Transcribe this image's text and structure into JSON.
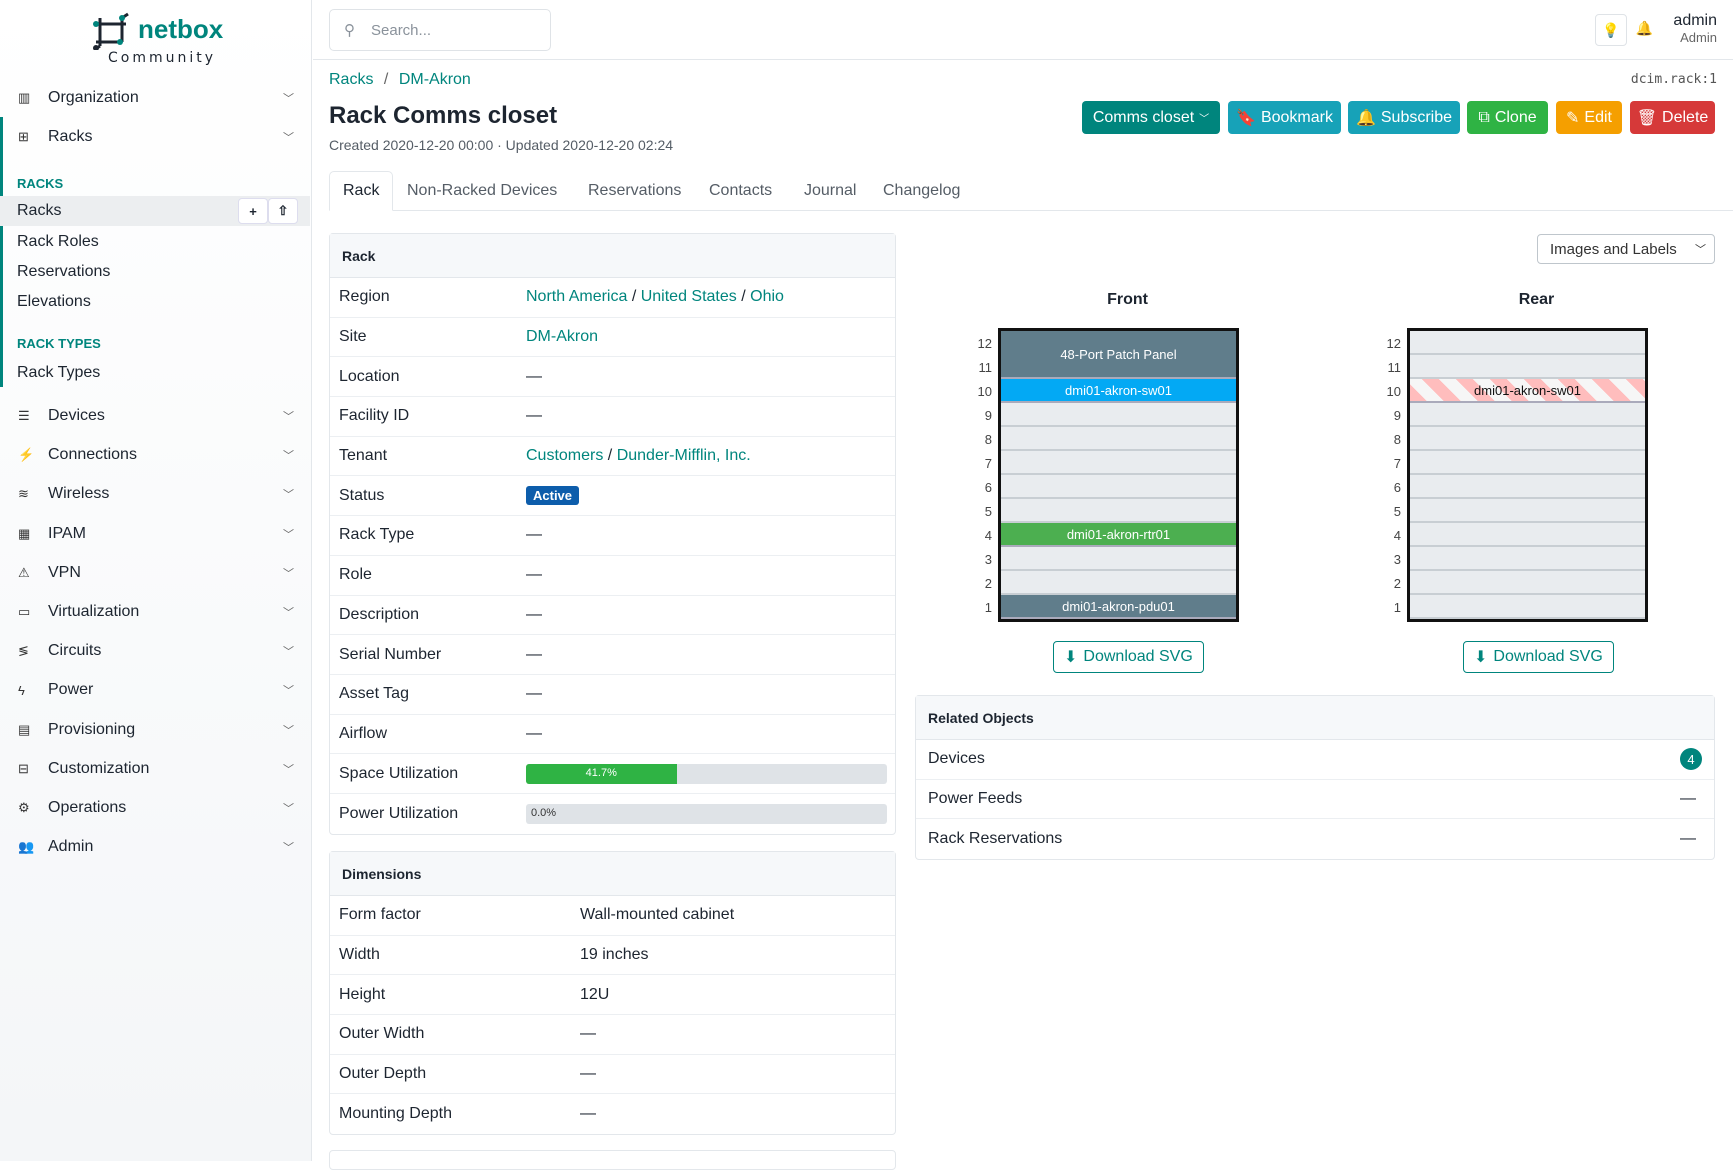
{
  "brand": {
    "name": "netbox",
    "edition": "Community"
  },
  "sidebar": {
    "top": [
      {
        "label": "Organization",
        "icon": "building-icon"
      },
      {
        "label": "Racks",
        "icon": "rack-icon"
      }
    ],
    "sections": [
      {
        "title": "RACKS",
        "items": [
          "Racks",
          "Rack Roles",
          "Reservations",
          "Elevations"
        ]
      },
      {
        "title": "RACK TYPES",
        "items": [
          "Rack Types"
        ]
      }
    ],
    "menus": [
      {
        "label": "Devices",
        "icon": "server-icon"
      },
      {
        "label": "Connections",
        "icon": "plug-icon"
      },
      {
        "label": "Wireless",
        "icon": "wifi-icon"
      },
      {
        "label": "IPAM",
        "icon": "ip-icon"
      },
      {
        "label": "VPN",
        "icon": "vpn-icon"
      },
      {
        "label": "Virtualization",
        "icon": "monitor-icon"
      },
      {
        "label": "Circuits",
        "icon": "circuit-icon"
      },
      {
        "label": "Power",
        "icon": "power-icon"
      },
      {
        "label": "Provisioning",
        "icon": "file-icon"
      },
      {
        "label": "Customization",
        "icon": "toolbox-icon"
      },
      {
        "label": "Operations",
        "icon": "cogs-icon"
      },
      {
        "label": "Admin",
        "icon": "users-icon"
      }
    ]
  },
  "topbar": {
    "search_placeholder": "Search...",
    "user": "admin",
    "role": "Admin"
  },
  "breadcrumb": [
    "Racks",
    "DM-Akron"
  ],
  "object_id": "dcim.rack:1",
  "title": "Rack Comms closet",
  "meta": "Created 2020-12-20 00:00 · Updated 2020-12-20 02:24",
  "buttons": {
    "rack_select": "Comms closet",
    "bookmark": "Bookmark",
    "subscribe": "Subscribe",
    "clone": "Clone",
    "edit": "Edit",
    "delete": "Delete"
  },
  "colors": {
    "accent": "#00857d",
    "bookmark": "#17a2b8",
    "clone": "#2fb344",
    "edit": "#f59f00",
    "delete": "#d63939"
  },
  "tabs": [
    "Rack",
    "Non-Racked Devices",
    "Reservations",
    "Contacts",
    "Journal",
    "Changelog"
  ],
  "rack_card": {
    "title": "Rack",
    "rows": [
      {
        "label": "Region",
        "links": [
          "North America",
          "United States",
          "Ohio"
        ]
      },
      {
        "label": "Site",
        "links": [
          "DM-Akron"
        ]
      },
      {
        "label": "Location",
        "value": "—"
      },
      {
        "label": "Facility ID",
        "value": "—"
      },
      {
        "label": "Tenant",
        "links": [
          "Customers",
          "Dunder-Mifflin, Inc."
        ]
      },
      {
        "label": "Status",
        "badge": "Active"
      },
      {
        "label": "Rack Type",
        "value": "—"
      },
      {
        "label": "Role",
        "value": "—"
      },
      {
        "label": "Description",
        "value": "—"
      },
      {
        "label": "Serial Number",
        "value": "—"
      },
      {
        "label": "Asset Tag",
        "value": "—"
      },
      {
        "label": "Airflow",
        "value": "—"
      },
      {
        "label": "Space Utilization",
        "percent": 41.7,
        "text": "41.7%"
      },
      {
        "label": "Power Utilization",
        "percent": 0,
        "text": "0.0%"
      }
    ]
  },
  "dimensions": {
    "title": "Dimensions",
    "rows": [
      {
        "label": "Form factor",
        "value": "Wall-mounted cabinet"
      },
      {
        "label": "Width",
        "value": "19 inches"
      },
      {
        "label": "Height",
        "value": "12U"
      },
      {
        "label": "Outer Width",
        "value": "—"
      },
      {
        "label": "Outer Depth",
        "value": "—"
      },
      {
        "label": "Mounting Depth",
        "value": "—"
      }
    ]
  },
  "elevation": {
    "view_select": "Images and Labels",
    "units": 12,
    "front": {
      "title": "Front",
      "devices": [
        {
          "name": "48-Port Patch Panel",
          "position": 11,
          "height": 2,
          "color": "#607d8b"
        },
        {
          "name": "dmi01-akron-sw01",
          "position": 10,
          "height": 1,
          "color": "#03a9f4"
        },
        {
          "name": "dmi01-akron-rtr01",
          "position": 4,
          "height": 1,
          "color": "#4caf50"
        },
        {
          "name": "dmi01-akron-pdu01",
          "position": 1,
          "height": 1,
          "color": "#607d8b"
        }
      ]
    },
    "rear": {
      "title": "Rear",
      "devices": [
        {
          "name": "dmi01-akron-sw01",
          "position": 10,
          "height": 1,
          "striped": true
        }
      ]
    },
    "download": "Download SVG"
  },
  "related": {
    "title": "Related Objects",
    "rows": [
      {
        "label": "Devices",
        "count": "4"
      },
      {
        "label": "Power Feeds",
        "value": "—"
      },
      {
        "label": "Rack Reservations",
        "value": "—"
      }
    ]
  }
}
